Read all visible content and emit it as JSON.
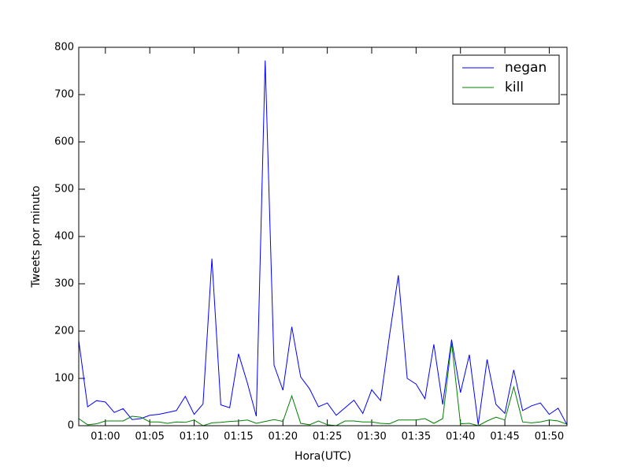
{
  "chart_data": {
    "type": "line",
    "xlabel": "Hora(UTC)",
    "ylabel": "Tweets por minuto",
    "x": [
      "00:57",
      "00:58",
      "00:59",
      "01:00",
      "01:01",
      "01:02",
      "01:03",
      "01:04",
      "01:05",
      "01:06",
      "01:07",
      "01:08",
      "01:09",
      "01:10",
      "01:11",
      "01:12",
      "01:13",
      "01:14",
      "01:15",
      "01:16",
      "01:17",
      "01:18",
      "01:19",
      "01:20",
      "01:21",
      "01:22",
      "01:23",
      "01:24",
      "01:25",
      "01:26",
      "01:27",
      "01:28",
      "01:29",
      "01:30",
      "01:31",
      "01:32",
      "01:33",
      "01:34",
      "01:35",
      "01:36",
      "01:37",
      "01:38",
      "01:39",
      "01:40",
      "01:41",
      "01:42",
      "01:43",
      "01:44",
      "01:45",
      "01:46",
      "01:47",
      "01:48",
      "01:49",
      "01:50",
      "01:51",
      "01:52"
    ],
    "series": [
      {
        "name": "negan",
        "color": "#0000ff",
        "values": [
          180,
          40,
          53,
          50,
          28,
          36,
          13,
          15,
          22,
          24,
          28,
          32,
          62,
          24,
          46,
          353,
          44,
          38,
          152,
          90,
          20,
          772,
          128,
          75,
          209,
          103,
          78,
          40,
          48,
          22,
          38,
          54,
          26,
          76,
          53,
          190,
          318,
          100,
          88,
          57,
          172,
          45,
          182,
          70,
          150,
          2,
          140,
          45,
          26,
          118,
          32,
          42,
          48,
          24,
          37,
          2
        ]
      },
      {
        "name": "kill",
        "color": "#008000",
        "values": [
          15,
          2,
          4,
          10,
          10,
          10,
          20,
          18,
          8,
          8,
          5,
          8,
          7,
          12,
          0,
          6,
          7,
          9,
          10,
          12,
          5,
          9,
          13,
          9,
          63,
          5,
          2,
          10,
          2,
          0,
          10,
          10,
          8,
          8,
          5,
          4,
          12,
          12,
          12,
          15,
          5,
          15,
          175,
          4,
          5,
          0,
          10,
          18,
          12,
          82,
          8,
          6,
          8,
          12,
          10,
          3
        ]
      }
    ],
    "xlim": [
      "00:57",
      "01:52"
    ],
    "xticks": [
      "01:00",
      "01:05",
      "01:10",
      "01:15",
      "01:20",
      "01:25",
      "01:30",
      "01:35",
      "01:40",
      "01:45",
      "01:50"
    ],
    "ylim": [
      0,
      800
    ],
    "yticks": [
      0,
      100,
      200,
      300,
      400,
      500,
      600,
      700,
      800
    ],
    "legend": "upper right",
    "grid": false
  }
}
